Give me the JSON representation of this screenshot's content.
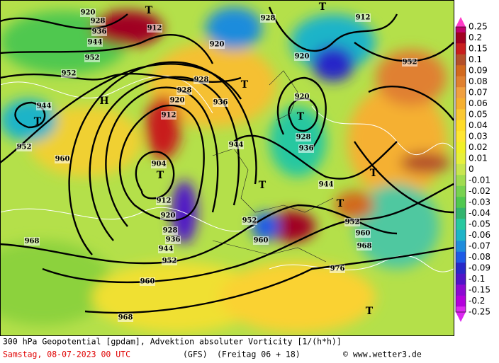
{
  "map": {
    "labels": [
      "920",
      "928",
      "936",
      "944",
      "952",
      "912",
      "T",
      "928",
      "T",
      "912",
      "920",
      "920",
      "952",
      "952",
      "944",
      "T",
      "952",
      "H",
      "928",
      "928",
      "T",
      "920",
      "912",
      "936",
      "920",
      "T",
      "928",
      "936",
      "944",
      "960",
      "904",
      "T",
      "912",
      "T",
      "944",
      "T",
      "T",
      "920",
      "928",
      "936",
      "944",
      "952",
      "952",
      "960",
      "952",
      "960",
      "968",
      "968",
      "976",
      "960",
      "968",
      "T"
    ]
  },
  "colorbar": {
    "labels": [
      "0.25",
      "0.2",
      "0.15",
      "0.1",
      "0.09",
      "0.08",
      "0.07",
      "0.06",
      "0.05",
      "0.04",
      "0.03",
      "0.02",
      "0.01",
      "0",
      "-0.01",
      "-0.02",
      "-0.03",
      "-0.04",
      "-0.05",
      "-0.06",
      "-0.07",
      "-0.08",
      "-0.09",
      "-0.1",
      "-0.15",
      "-0.2",
      "-0.25"
    ],
    "colors": [
      "#c0006a",
      "#a00020",
      "#c81e1e",
      "#b4502a",
      "#d2691e",
      "#e08030",
      "#f0a040",
      "#f5b030",
      "#fac832",
      "#ffdc28",
      "#ffe632",
      "#f0f028",
      "#e6f03c",
      "#c8e650",
      "#a0dc50",
      "#78d250",
      "#50c850",
      "#32b46e",
      "#28c8a0",
      "#1eb4c8",
      "#1e8cdc",
      "#1e5ae6",
      "#2828c8",
      "#5014c8",
      "#8c0ad2",
      "#b400dc",
      "#dc28f0"
    ],
    "top_color": "#ff3cc8",
    "bottom_color": "#dc28f0"
  },
  "footer": {
    "title": "300 hPa Geopotential [gpdam], Advektion absoluter Vorticity [1/(h*h)]",
    "date": "Samstag, 08-07-2023  00 UTC",
    "model": "(GFS)",
    "run": "(Freitag 06 + 18)",
    "source": "© www.wetter3.de"
  }
}
